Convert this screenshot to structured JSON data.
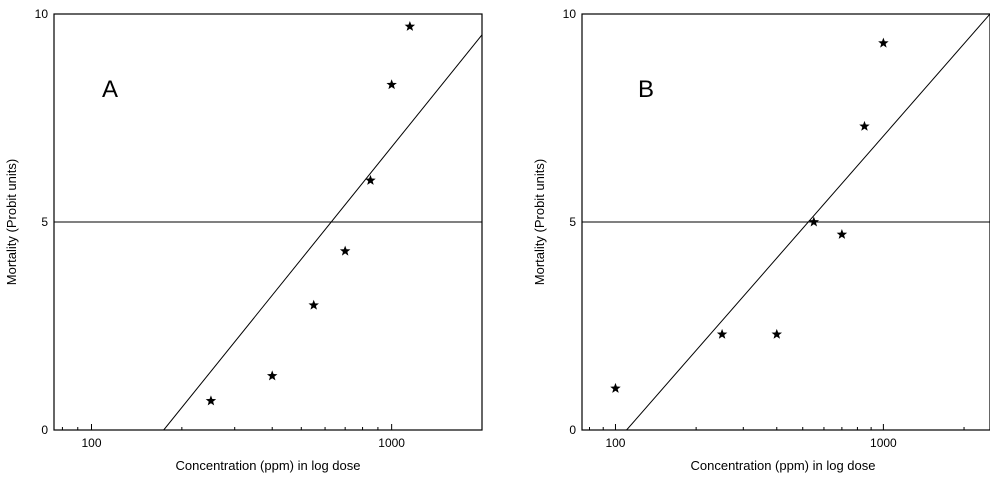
{
  "chart_data": [
    {
      "type": "scatter",
      "panel_label": "A",
      "xlabel": "Concentration (ppm) in log dose",
      "ylabel": "Mortality (Probit units)",
      "x_scale": "log",
      "xlim": [
        75,
        2000
      ],
      "ylim": [
        0,
        10
      ],
      "x_ticks": [
        {
          "value": 100,
          "label": "100"
        },
        {
          "value": 1000,
          "label": "1000"
        }
      ],
      "y_ticks": [
        {
          "value": 0,
          "label": "0"
        },
        {
          "value": 5,
          "label": "5"
        },
        {
          "value": 10,
          "label": "10"
        }
      ],
      "reference_line_y": 5,
      "points": [
        {
          "x": 250,
          "y": 0.7
        },
        {
          "x": 400,
          "y": 1.3
        },
        {
          "x": 550,
          "y": 3.0
        },
        {
          "x": 700,
          "y": 4.3
        },
        {
          "x": 850,
          "y": 6.0
        },
        {
          "x": 1000,
          "y": 8.3
        },
        {
          "x": 1150,
          "y": 9.7
        }
      ],
      "fit_line": {
        "x": [
          174,
          2000
        ],
        "y": [
          0,
          9.5
        ]
      }
    },
    {
      "type": "scatter",
      "panel_label": "B",
      "xlabel": "Concentration (ppm) in log dose",
      "ylabel": "Mortality (Probit units)",
      "x_scale": "log",
      "xlim": [
        75,
        2500
      ],
      "ylim": [
        0,
        10
      ],
      "x_ticks": [
        {
          "value": 100,
          "label": "100"
        },
        {
          "value": 1000,
          "label": "1000"
        }
      ],
      "y_ticks": [
        {
          "value": 0,
          "label": "0"
        },
        {
          "value": 5,
          "label": "5"
        },
        {
          "value": 10,
          "label": "10"
        }
      ],
      "reference_line_y": 5,
      "points": [
        {
          "x": 100,
          "y": 1.0
        },
        {
          "x": 250,
          "y": 2.3
        },
        {
          "x": 400,
          "y": 2.3
        },
        {
          "x": 550,
          "y": 5.0
        },
        {
          "x": 700,
          "y": 4.7
        },
        {
          "x": 850,
          "y": 7.3
        },
        {
          "x": 1000,
          "y": 9.3
        }
      ],
      "fit_line": {
        "x": [
          110,
          2500
        ],
        "y": [
          0,
          10
        ]
      }
    }
  ]
}
